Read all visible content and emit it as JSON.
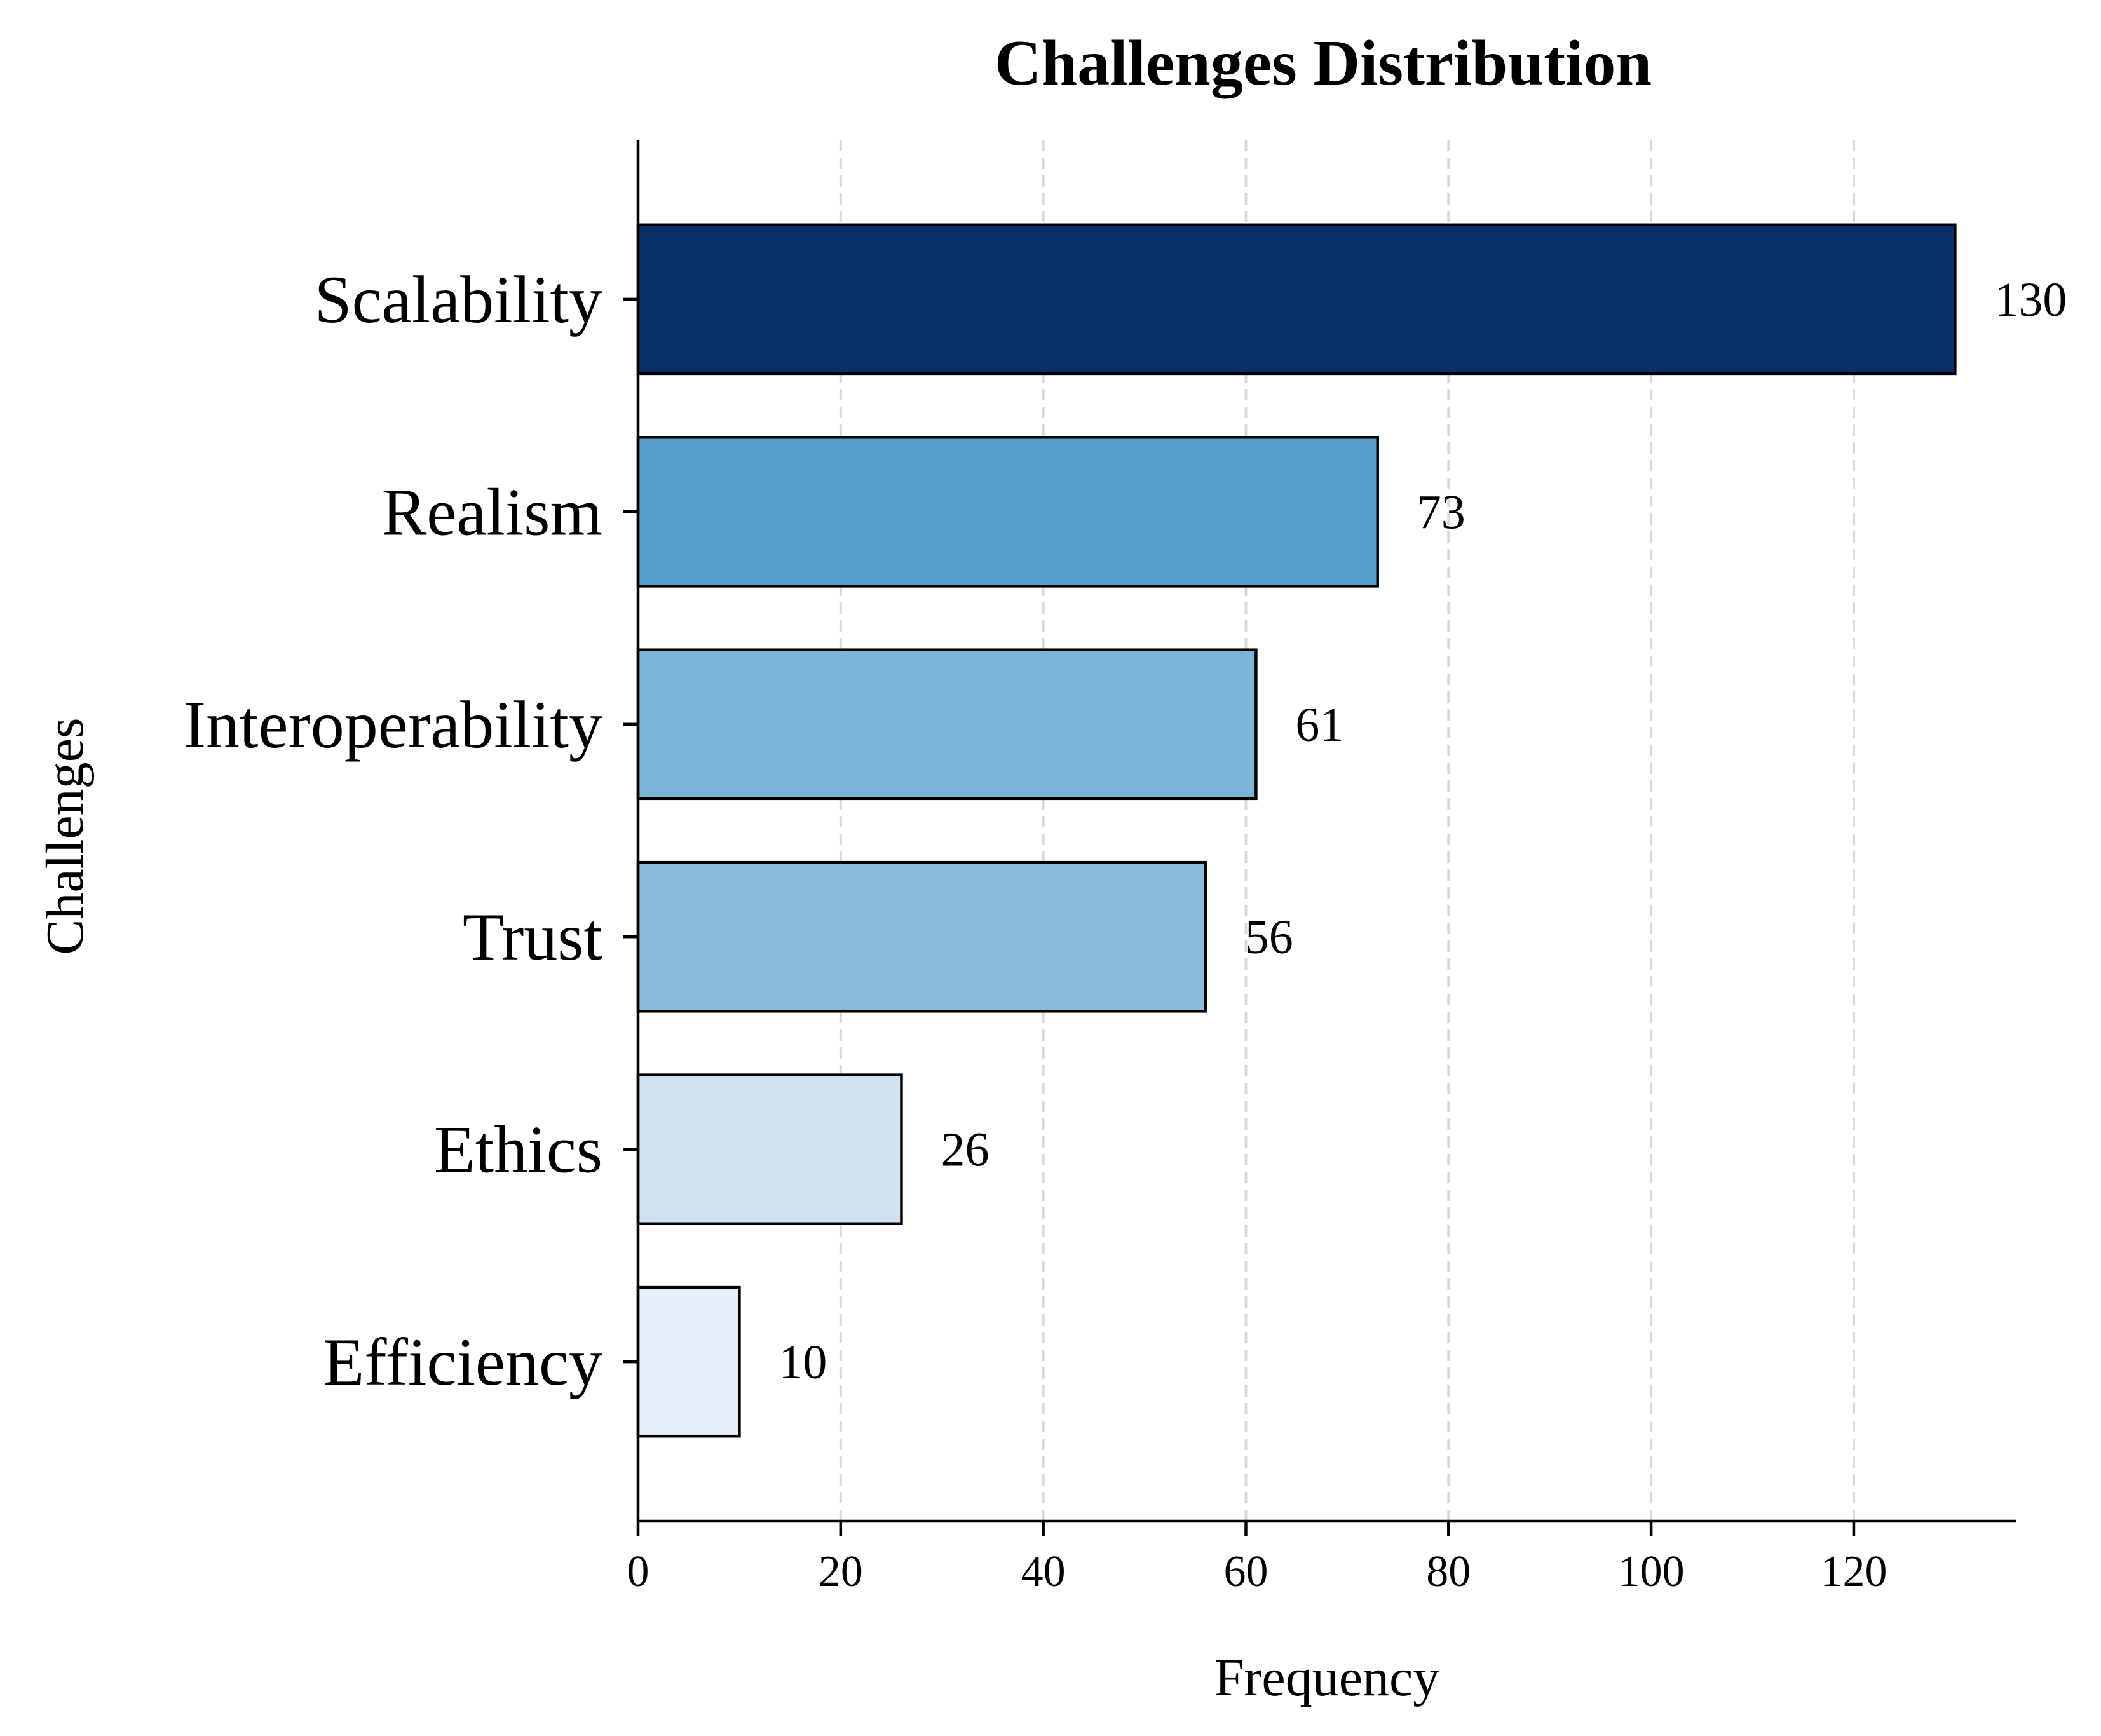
{
  "chart_data": {
    "type": "bar",
    "orientation": "horizontal",
    "title": "Challenges Distribution",
    "xlabel": "Frequency",
    "ylabel": "Challenges",
    "categories": [
      "Scalability",
      "Realism",
      "Interoperability",
      "Trust",
      "Ethics",
      "Efficiency"
    ],
    "values": [
      130,
      73,
      61,
      56,
      26,
      10
    ],
    "bar_colors": [
      "#08306b",
      "#58a0cc",
      "#7ab6d8",
      "#89bcdb",
      "#d0e2f2",
      "#e7f0fa"
    ],
    "xlim": [
      0,
      136
    ],
    "xticks": [
      0,
      20,
      40,
      60,
      80,
      100,
      120
    ],
    "x_grid": "dashed",
    "legend": "none"
  }
}
